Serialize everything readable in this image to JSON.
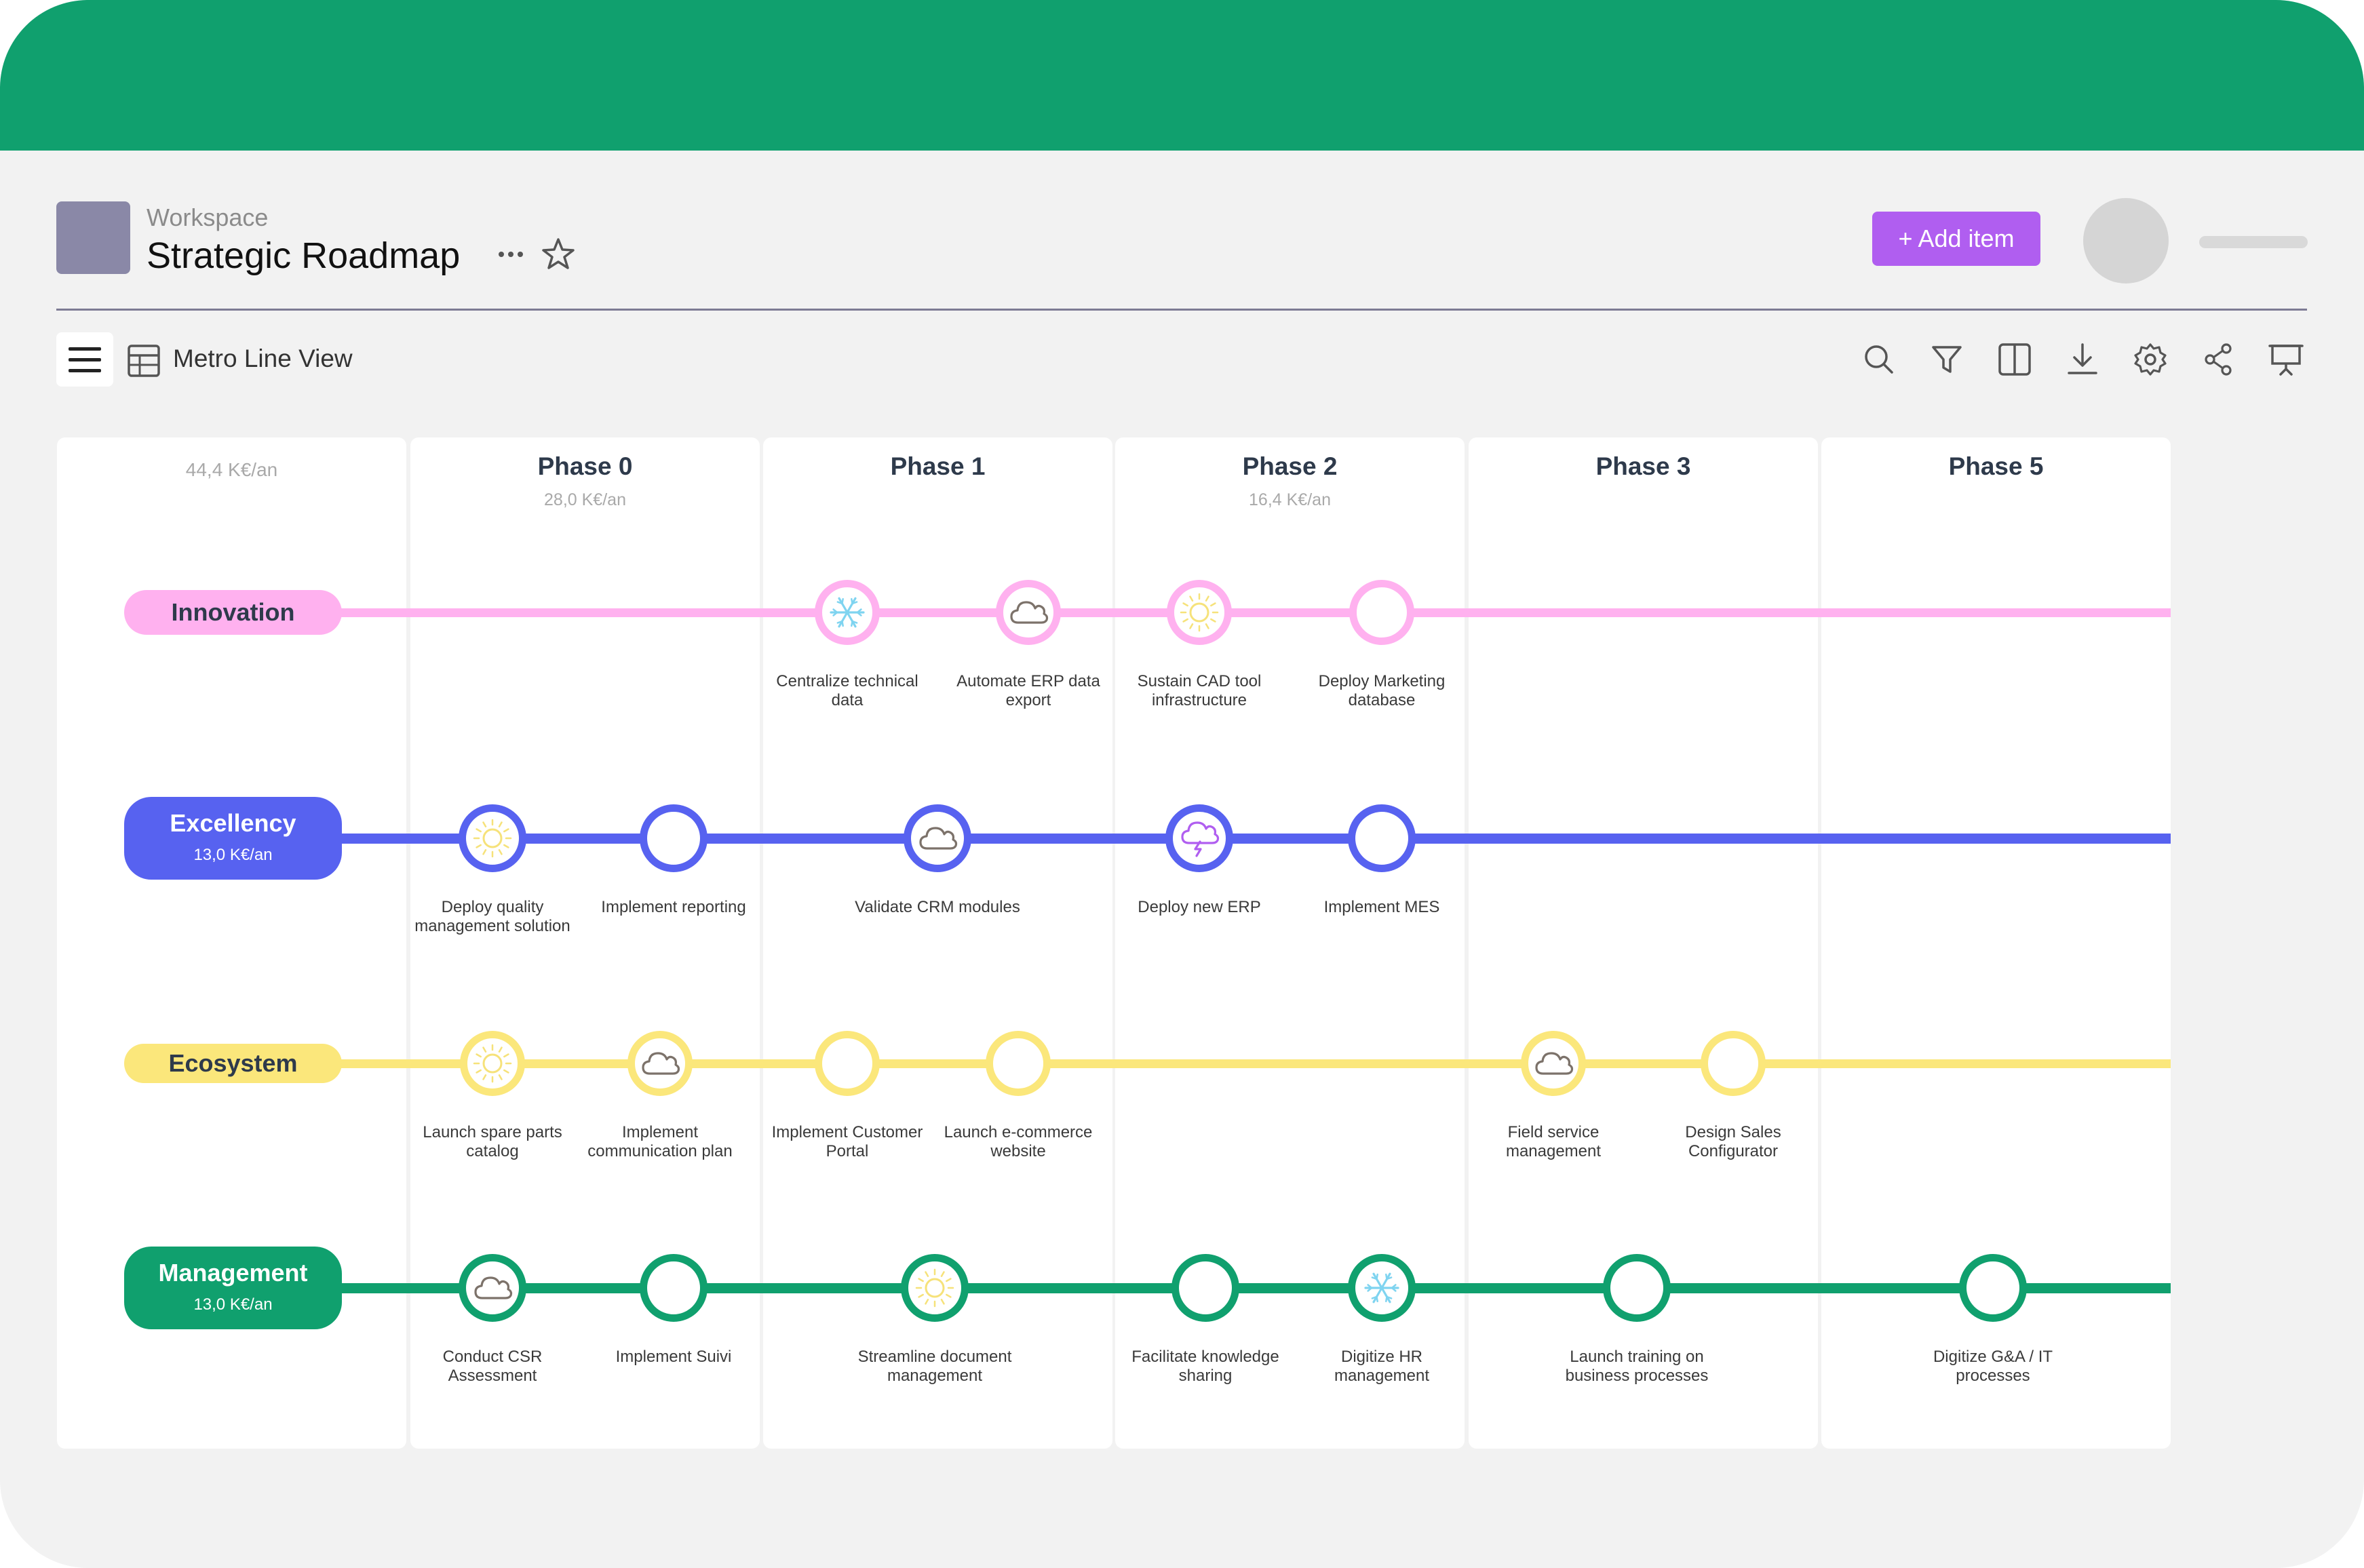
{
  "header": {
    "workspace_label": "Workspace",
    "title": "Strategic Roadmap",
    "add_button": "+ Add item",
    "icons": [
      "more-dots-icon",
      "star-icon"
    ]
  },
  "toolbar": {
    "view_label": "Metro Line View",
    "icons": [
      "menu-icon",
      "table-icon",
      "search-icon",
      "filter-icon",
      "split-view-icon",
      "download-icon",
      "settings-icon",
      "share-icon",
      "present-icon"
    ]
  },
  "columns": [
    {
      "title": "",
      "budget": "44,4 K€/an"
    },
    {
      "title": "Phase 0",
      "budget": "28,0 K€/an"
    },
    {
      "title": "Phase 1",
      "budget": ""
    },
    {
      "title": "Phase 2",
      "budget": "16,4 K€/an"
    },
    {
      "title": "Phase 3",
      "budget": ""
    },
    {
      "title": "Phase 5",
      "budget": ""
    }
  ],
  "lines": [
    {
      "name": "Innovation",
      "budget": "",
      "color": "#ffb1ef",
      "label_bg": "#ffb1ef",
      "label_color": "#2e3a4b",
      "stations": [
        {
          "label": "Centralize technical data",
          "icon": "snowflake"
        },
        {
          "label": "Automate ERP data export",
          "icon": "cloud"
        },
        {
          "label": "Sustain CAD tool infrastructure",
          "icon": "sun"
        },
        {
          "label": "Deploy Marketing database",
          "icon": ""
        }
      ]
    },
    {
      "name": "Excellency",
      "budget": "13,0 K€/an",
      "color": "#5762f0",
      "label_bg": "#5762f0",
      "label_color": "#ffffff",
      "stations": [
        {
          "label": "Deploy quality management solution",
          "icon": "sun"
        },
        {
          "label": "Implement reporting",
          "icon": ""
        },
        {
          "label": "Validate CRM modules",
          "icon": "cloud"
        },
        {
          "label": "Deploy new ERP",
          "icon": "storm"
        },
        {
          "label": "Implement MES",
          "icon": ""
        }
      ]
    },
    {
      "name": "Ecosystem",
      "budget": "",
      "color": "#fbe77b",
      "label_bg": "#fbe77b",
      "label_color": "#2e3a4b",
      "stations": [
        {
          "label": "Launch spare parts catalog",
          "icon": "sun"
        },
        {
          "label": "Implement communication plan",
          "icon": "cloud"
        },
        {
          "label": "Implement Customer Portal",
          "icon": ""
        },
        {
          "label": "Launch e-commerce website",
          "icon": ""
        },
        {
          "label": "Field service management",
          "icon": "cloud"
        },
        {
          "label": "Design Sales Configurator",
          "icon": ""
        }
      ]
    },
    {
      "name": "Management",
      "budget": "13,0 K€/an",
      "color": "#10a06e",
      "label_bg": "#10a06e",
      "label_color": "#ffffff",
      "stations": [
        {
          "label": "Conduct CSR Assessment",
          "icon": "cloud"
        },
        {
          "label": "Implement Suivi",
          "icon": ""
        },
        {
          "label": "Streamline document management",
          "icon": "sun"
        },
        {
          "label": "Facilitate knowledge sharing",
          "icon": ""
        },
        {
          "label": "Digitize HR management",
          "icon": "snowflake"
        },
        {
          "label": "Launch training on business processes",
          "icon": ""
        },
        {
          "label": "Digitize G&A / IT processes",
          "icon": ""
        }
      ]
    }
  ],
  "icon_colors": {
    "sun": "#f6e27a",
    "cloud": "#7c726a",
    "snowflake": "#7fd4f0",
    "storm": "#b05ef0"
  }
}
